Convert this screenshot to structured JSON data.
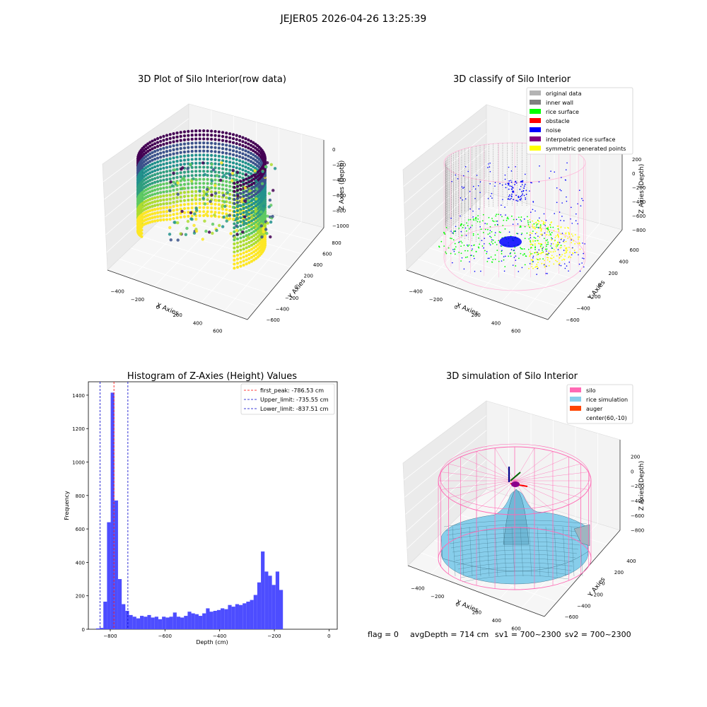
{
  "suptitle": "JEJER05 2026-04-26 13:25:39",
  "status_line": {
    "flag": "flag = 0",
    "avg_depth": "avgDepth = 714 cm",
    "sv1": "sv1 = 700~2300",
    "sv2": "sv2 = 700~2300"
  },
  "colors": {
    "hist_bar": "#4d4dff",
    "peak_line": "#ff0000",
    "limit_line": "#0000cc",
    "silo_wire": "#ff69b4",
    "rice_surface": "#87ceeb",
    "original_data": "#b3b3b3",
    "inner_wall": "#808080",
    "rice_surface_class": "#00ff00",
    "obstacle": "#ff0000",
    "noise": "#0000ff",
    "interpolated": "#800080",
    "symmetric": "#ffff00",
    "auger": "#ff4500"
  },
  "chart_data": [
    {
      "type": "scatter",
      "title": "3D Plot of Silo Interior(row data)",
      "xlabel": "X Axies",
      "ylabel": "Y Axies",
      "zlabel": "Z Axies (Depth)",
      "x_ticks": [
        "−400",
        "−200",
        "0",
        "200",
        "400",
        "600"
      ],
      "y_ticks": [
        "−600",
        "−400",
        "−200",
        "0",
        "200",
        "400",
        "600",
        "800"
      ],
      "z_ticks": [
        "0",
        "−200",
        "−400",
        "−600",
        "−800",
        "−1000"
      ],
      "xlim": [
        -550,
        650
      ],
      "ylim": [
        -650,
        850
      ],
      "zlim": [
        -1100,
        0
      ],
      "colormap": "viridis"
    },
    {
      "type": "scatter",
      "title": "3D classify of Silo Interior",
      "xlabel": "X Axies",
      "ylabel": "Y Axies",
      "zlabel": "Z Axies (Depth)",
      "x_ticks": [
        "−400",
        "−200",
        "0",
        "200",
        "400",
        "600"
      ],
      "y_ticks": [
        "−600",
        "−400",
        "−200",
        "0",
        "200",
        "400",
        "600"
      ],
      "z_ticks": [
        "200",
        "0",
        "−200",
        "−400",
        "−600",
        "−800"
      ],
      "legend": [
        {
          "label": "original data",
          "color": "#b3b3b3"
        },
        {
          "label": "inner wall",
          "color": "#808080"
        },
        {
          "label": "rice surface",
          "color": "#00ff00"
        },
        {
          "label": "obstacle",
          "color": "#ff0000"
        },
        {
          "label": "noise",
          "color": "#0000ff"
        },
        {
          "label": "interpolated rice surface",
          "color": "#800080"
        },
        {
          "label": "symmetric generated points",
          "color": "#ffff00"
        }
      ],
      "legend_position": "top-right"
    },
    {
      "type": "bar",
      "title": "Histogram of Z-Axies (Height) Values",
      "xlabel": "Depth (cm)",
      "ylabel": "Frequency",
      "xlim": [
        -880,
        30
      ],
      "ylim": [
        0,
        1480
      ],
      "x_ticks": [
        -800,
        -600,
        -400,
        -200,
        0
      ],
      "x_tick_labels": [
        "−800",
        "−600",
        "−400",
        "−200",
        "0"
      ],
      "y_ticks": [
        0,
        200,
        400,
        600,
        800,
        1000,
        1200,
        1400
      ],
      "bin_start": -852,
      "bin_width": 13.4,
      "values": [
        5,
        8,
        165,
        640,
        1415,
        770,
        300,
        150,
        110,
        85,
        75,
        65,
        80,
        75,
        85,
        70,
        75,
        60,
        75,
        70,
        75,
        100,
        75,
        70,
        80,
        105,
        95,
        90,
        80,
        95,
        125,
        105,
        110,
        115,
        125,
        120,
        145,
        135,
        150,
        145,
        155,
        165,
        175,
        205,
        280,
        465,
        345,
        320,
        265,
        345,
        235
      ],
      "vlines": [
        {
          "label": "first_peak: -786.53 cm",
          "x": -786.53,
          "color": "#ff0000"
        },
        {
          "label": "Upper_limit: -735.55 cm",
          "x": -735.55,
          "color": "#0000cc"
        },
        {
          "label": "Lower_limit: -837.51 cm",
          "x": -837.51,
          "color": "#0000cc"
        }
      ],
      "legend_position": "top-right"
    },
    {
      "type": "surface",
      "title": "3D simulation of Silo Interior",
      "xlabel": "X Axies",
      "ylabel": "Y Axies",
      "zlabel": "Z Axies (Depth)",
      "x_ticks": [
        "−400",
        "−200",
        "0",
        "200",
        "400",
        "600"
      ],
      "y_ticks": [
        "−600",
        "−400",
        "−200",
        "0",
        "200",
        "400"
      ],
      "z_ticks": [
        "200",
        "0",
        "−200",
        "−400",
        "−600",
        "−800"
      ],
      "legend": [
        {
          "label": "silo",
          "color": "#ff69b4"
        },
        {
          "label": "rice simulation",
          "color": "#87ceeb"
        },
        {
          "label": "auger",
          "color": "#ff4500"
        },
        {
          "label": "center(60,-10)",
          "color": ""
        }
      ],
      "legend_position": "top-right"
    }
  ]
}
